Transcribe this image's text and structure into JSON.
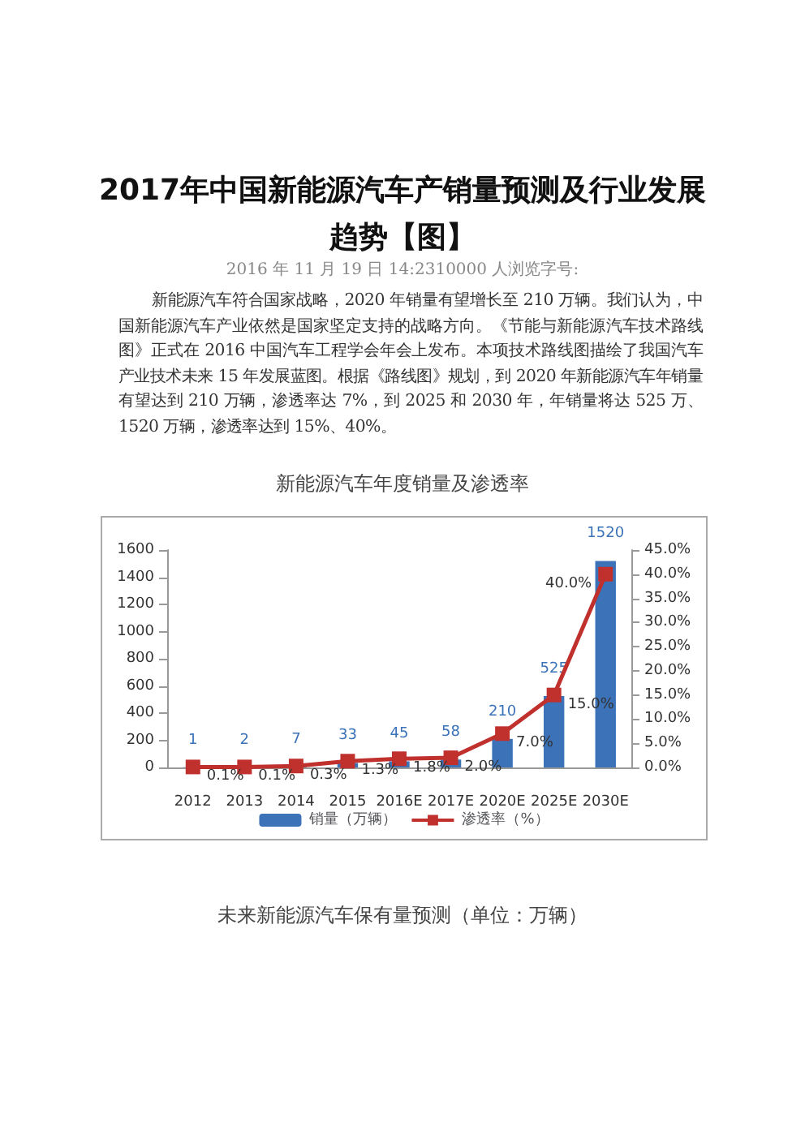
{
  "chart_data": {
    "type": "bar",
    "title": "2017年中国新能源汽车产销量预测及行业发展趋势【图】",
    "subtitle": "2016 年 11 月 19 日 14:2310000 人浏览字号:",
    "annotations": [
      "新能源汽车符合国家战略，2020 年销量有望增长至 210 万辆。我们认为，中国新能源汽车产业依然是国家坚定支持的战略方向。《节能与新能源汽车技术路线图》正式在 2016 中国汽车工程学会年会上发布。本项技术路线图描绘了我国汽车产业技术未来 15 年发展蓝图。根据《路线图》规划，到 2020 年新能源汽车年销量有望达到 210 万辆，渗透率达 7%，到 2025 和 2030 年，年销量将达 525 万、1520 万辆，渗透率达到 15%、40%。",
      "新能源汽车年度销量及渗透率",
      "未来新能源汽车保有量预测（单位：万辆）"
    ],
    "categories": [
      "2012",
      "2013",
      "2014",
      "2015",
      "2016E",
      "2017E",
      "2020E",
      "2025E",
      "2030E"
    ],
    "series": [
      {
        "name": "销量（万辆）",
        "color": "#3b72b8",
        "values": [
          1,
          2,
          7,
          33,
          45,
          58,
          210,
          525,
          1520
        ],
        "value_labels": [
          "1",
          "2",
          "7",
          "33",
          "45",
          "58",
          "210",
          "525",
          "1520"
        ]
      },
      {
        "name": "渗透率（%）",
        "type": "line",
        "axis": "y2",
        "color": "#c0312e",
        "values": [
          0.1,
          0.1,
          0.3,
          1.3,
          1.8,
          2.0,
          7.0,
          15.0,
          40.0
        ],
        "value_labels": [
          "0.1%",
          "0.1%",
          "0.3%",
          "1.3%",
          "1.8%",
          "2.0%",
          "7.0%",
          "15.0%",
          "40.0%"
        ]
      }
    ],
    "ylim": [
      0,
      1600
    ],
    "yticks": [
      0,
      200,
      400,
      600,
      800,
      1000,
      1200,
      1400,
      1600
    ],
    "y2lim": [
      0,
      45
    ],
    "y2ticks": [
      {
        "value": 0,
        "label": "0.0%"
      },
      {
        "value": 5,
        "label": "5.0%"
      },
      {
        "value": 10,
        "label": "10.0%"
      },
      {
        "value": 15,
        "label": "15.0%"
      },
      {
        "value": 20,
        "label": "20.0%"
      },
      {
        "value": 25,
        "label": "25.0%"
      },
      {
        "value": 30,
        "label": "30.0%"
      },
      {
        "value": 35,
        "label": "35.0%"
      },
      {
        "value": 40,
        "label": "40.0%"
      },
      {
        "value": 45,
        "label": "45.0%"
      }
    ],
    "legend": "bottom",
    "grid": false,
    "marker": "square"
  }
}
